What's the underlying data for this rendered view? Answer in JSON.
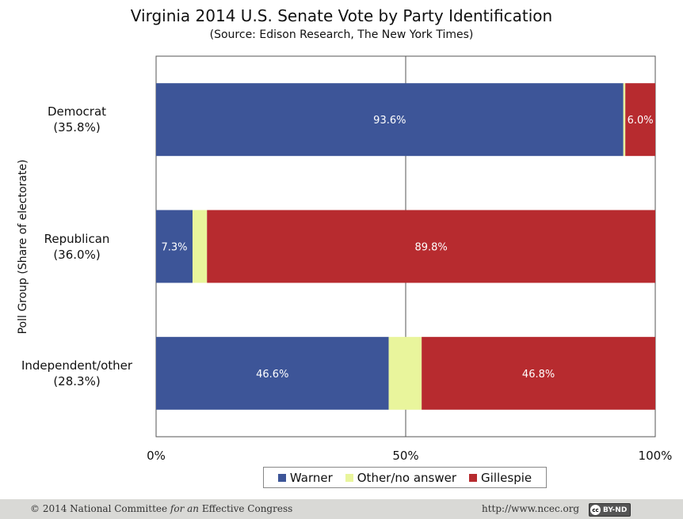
{
  "chart_data": {
    "type": "bar",
    "orientation": "horizontal",
    "stacked": true,
    "title": "Virginia 2014 U.S. Senate Vote by Party Identification",
    "subtitle": "(Source: Edison Research, The New York Times)",
    "xlabel": "",
    "ylabel": "Poll Group (Share of electorate)",
    "xlim": [
      0,
      100
    ],
    "x_ticks": [
      "0%",
      "50%",
      "100%"
    ],
    "grid": "vertical line at 50%",
    "legend_position": "bottom",
    "categories": [
      {
        "name": "Democrat",
        "share": "(35.8%)"
      },
      {
        "name": "Republican",
        "share": "(36.0%)"
      },
      {
        "name": "Independent/other",
        "share": "(28.3%)"
      }
    ],
    "series": [
      {
        "name": "Warner",
        "color": "#3d5598",
        "values": [
          93.6,
          7.3,
          46.6
        ],
        "labels": [
          "93.6%",
          "7.3%",
          "46.6%"
        ]
      },
      {
        "name": "Other/no answer",
        "color": "#e9f59c",
        "values": [
          0.4,
          2.9,
          6.6
        ],
        "labels": [
          "",
          "",
          ""
        ]
      },
      {
        "name": "Gillespie",
        "color": "#b72b2f",
        "values": [
          6.0,
          89.8,
          46.8
        ],
        "labels": [
          "6.0%",
          "89.8%",
          "46.8%"
        ]
      }
    ]
  },
  "footer": {
    "copyright_prefix": "© 2014 National Committee ",
    "copyright_italic": "for an",
    "copyright_suffix": " Effective Congress",
    "url": "http://www.ncec.org",
    "license_badge": "BY-ND",
    "license_icon": "cc"
  }
}
